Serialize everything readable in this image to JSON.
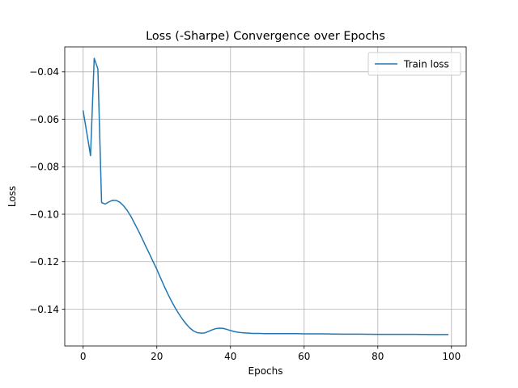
{
  "chart_data": {
    "type": "line",
    "title": "Loss (-Sharpe) Convergence over Epochs",
    "xlabel": "Epochs",
    "ylabel": "Loss",
    "xlim": [
      -5,
      104
    ],
    "ylim": [
      -0.1555,
      -0.0295
    ],
    "xticks": [
      0,
      20,
      40,
      60,
      80,
      100
    ],
    "xtick_labels": [
      "0",
      "20",
      "40",
      "60",
      "80",
      "100"
    ],
    "yticks": [
      -0.04,
      -0.06,
      -0.08,
      -0.1,
      -0.12,
      -0.14
    ],
    "ytick_labels": [
      "−0.04",
      "−0.06",
      "−0.08",
      "−0.10",
      "−0.12",
      "−0.14"
    ],
    "grid": true,
    "legend_position": "top-right",
    "series": [
      {
        "name": "Train loss",
        "color": "#1f77b4",
        "x": [
          0,
          1,
          2,
          3,
          4,
          5,
          6,
          7,
          8,
          9,
          10,
          11,
          12,
          13,
          14,
          15,
          16,
          17,
          18,
          19,
          20,
          21,
          22,
          23,
          24,
          25,
          26,
          27,
          28,
          29,
          30,
          31,
          32,
          33,
          34,
          35,
          36,
          37,
          38,
          39,
          40,
          41,
          42,
          43,
          44,
          45,
          46,
          47,
          48,
          49,
          50,
          52,
          55,
          58,
          60,
          65,
          70,
          75,
          80,
          85,
          90,
          95,
          99
        ],
        "y": [
          -0.0565,
          -0.0658,
          -0.0753,
          -0.0343,
          -0.0388,
          -0.0951,
          -0.0957,
          -0.0948,
          -0.0941,
          -0.0942,
          -0.095,
          -0.0965,
          -0.0985,
          -0.101,
          -0.104,
          -0.107,
          -0.1102,
          -0.1135,
          -0.1167,
          -0.12,
          -0.1232,
          -0.1268,
          -0.1303,
          -0.1336,
          -0.1367,
          -0.1395,
          -0.142,
          -0.1443,
          -0.1463,
          -0.148,
          -0.1492,
          -0.1499,
          -0.1501,
          -0.15,
          -0.1494,
          -0.1487,
          -0.1482,
          -0.148,
          -0.1481,
          -0.1485,
          -0.149,
          -0.1494,
          -0.1497,
          -0.1499,
          -0.15,
          -0.1501,
          -0.1502,
          -0.1502,
          -0.1502,
          -0.1503,
          -0.1503,
          -0.1503,
          -0.1503,
          -0.1503,
          -0.1504,
          -0.1504,
          -0.1505,
          -0.1505,
          -0.1506,
          -0.1506,
          -0.1506,
          -0.1507,
          -0.1507
        ]
      }
    ]
  }
}
